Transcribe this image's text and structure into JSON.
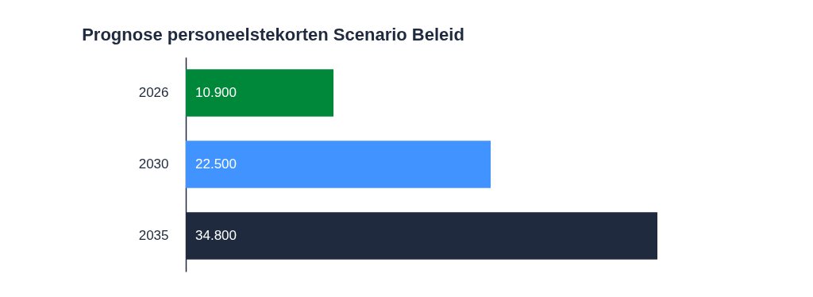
{
  "chart_data": {
    "type": "bar",
    "orientation": "horizontal",
    "title": "Prognose personeelstekorten Scenario Beleid",
    "categories": [
      "2026",
      "2030",
      "2035"
    ],
    "values": [
      10900,
      22500,
      34800
    ],
    "colors": [
      "#00883a",
      "#4193ff",
      "#1f2a3f"
    ],
    "value_labels": [
      "10.900",
      "22.500",
      "34.800"
    ],
    "grid": false
  }
}
